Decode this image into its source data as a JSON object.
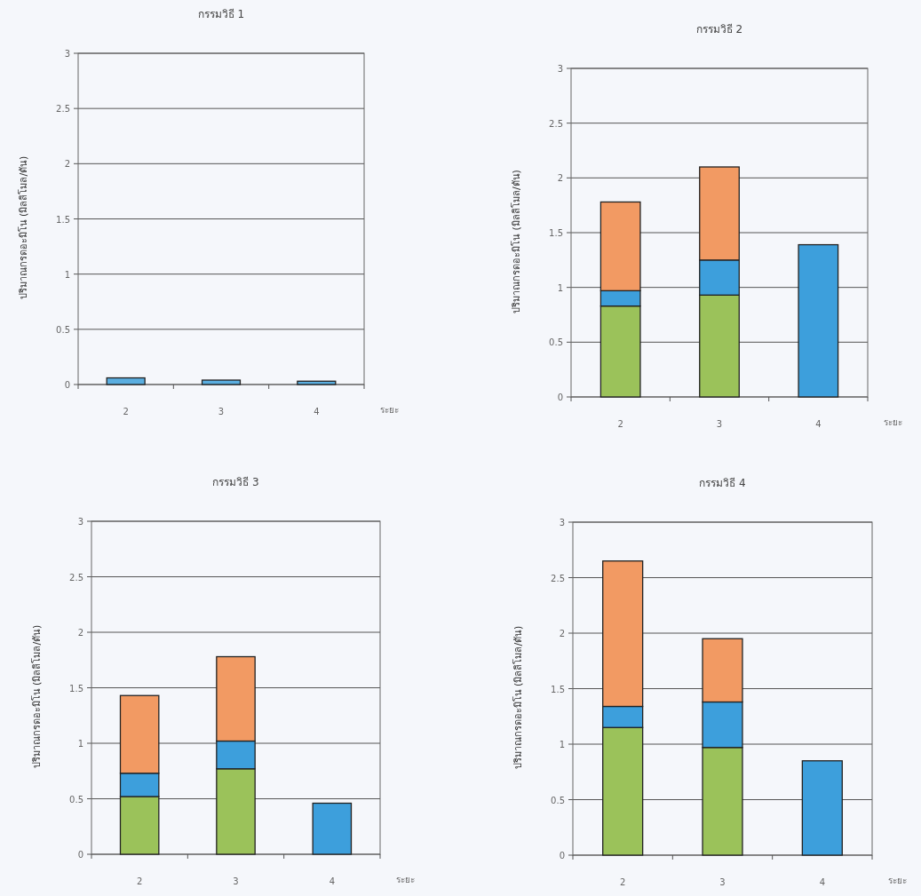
{
  "chart_data": [
    {
      "type": "bar",
      "stacked": true,
      "title": "กรรมวิธี 1",
      "xlabel": "ระยะ",
      "ylabel": "ปริมาณกรดอะมิโน (มิลลิโมล/ตัน)",
      "categories": [
        "2",
        "3",
        "4"
      ],
      "ylim": [
        0,
        3
      ],
      "yticks": [
        0,
        0.5,
        1,
        1.5,
        2,
        2.5,
        3
      ],
      "grid": "y",
      "series": [
        {
          "color": "#5aaee0",
          "values": [
            0.06,
            0.04,
            0.03
          ]
        }
      ]
    },
    {
      "type": "bar",
      "stacked": true,
      "title": "กรรมวิธี 2",
      "xlabel": "ระยะ",
      "ylabel": "ปริมาณกรดอะมิโน (มิลลิโมล/ตัน)",
      "categories": [
        "2",
        "3",
        "4"
      ],
      "ylim": [
        0,
        3
      ],
      "yticks": [
        0,
        0.5,
        1,
        1.5,
        2,
        2.5,
        3
      ],
      "grid": "y",
      "series": [
        {
          "color": "#9bc25a",
          "values": [
            0.83,
            0.93,
            null
          ]
        },
        {
          "color": "#3d9fdc",
          "values": [
            0.14,
            0.32,
            1.39
          ]
        },
        {
          "color": "#f29a63",
          "values": [
            0.81,
            0.85,
            null
          ]
        }
      ]
    },
    {
      "type": "bar",
      "stacked": true,
      "title": "กรรมวิธี 3",
      "xlabel": "ระยะ",
      "ylabel": "ปริมาณกรดอะมิโน (มิลลิโมล/ตัน)",
      "categories": [
        "2",
        "3",
        "4"
      ],
      "ylim": [
        0,
        3
      ],
      "yticks": [
        0,
        0.5,
        1,
        1.5,
        2,
        2.5,
        3
      ],
      "grid": "y",
      "series": [
        {
          "color": "#9bc25a",
          "values": [
            0.52,
            0.77,
            null
          ]
        },
        {
          "color": "#3d9fdc",
          "values": [
            0.21,
            0.25,
            0.46
          ]
        },
        {
          "color": "#f29a63",
          "values": [
            0.7,
            0.76,
            null
          ]
        }
      ]
    },
    {
      "type": "bar",
      "stacked": true,
      "title": "กรรมวิธี 4",
      "xlabel": "ระยะ",
      "ylabel": "ปริมาณกรดอะมิโน (มิลลิโมล/ตัน)",
      "categories": [
        "2",
        "3",
        "4"
      ],
      "ylim": [
        0,
        3
      ],
      "yticks": [
        0,
        0.5,
        1,
        1.5,
        2,
        2.5,
        3
      ],
      "grid": "y",
      "series": [
        {
          "color": "#9bc25a",
          "values": [
            1.15,
            0.97,
            null
          ]
        },
        {
          "color": "#3d9fdc",
          "values": [
            0.19,
            0.41,
            0.85
          ]
        },
        {
          "color": "#f29a63",
          "values": [
            1.31,
            0.57,
            null
          ]
        }
      ]
    }
  ]
}
